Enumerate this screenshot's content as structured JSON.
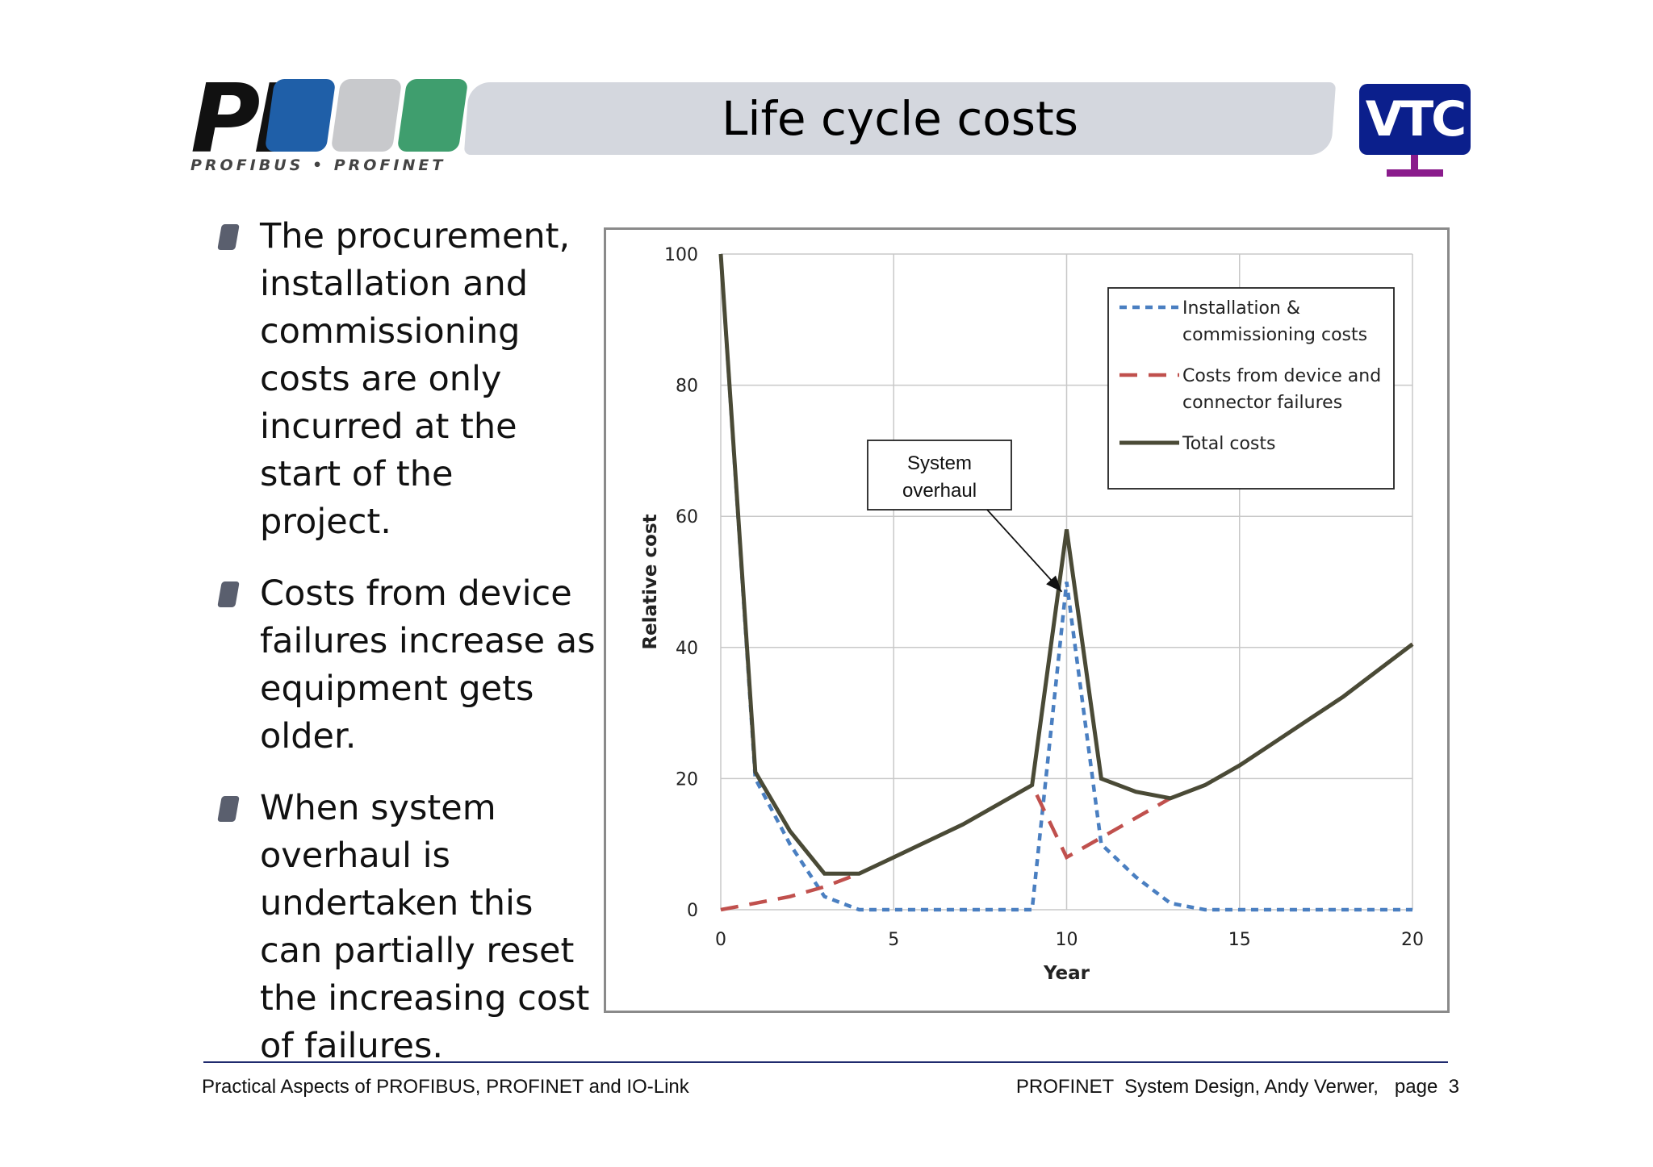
{
  "header": {
    "title": "Life cycle costs",
    "logo_left": {
      "mark": "PI",
      "tagline": "PROFIBUS • PROFINET",
      "block_colors": [
        "#1f5fa8",
        "#c8c9cc",
        "#3f9e6e"
      ]
    },
    "logo_right": {
      "text": "VTC",
      "screen_color": "#0b1f8c",
      "stand_color": "#8a1c8c"
    }
  },
  "bullets": [
    {
      "text": "The procurement, installation and commissioning costs are only incurred at the start of the project."
    },
    {
      "text": "Costs from device failures increase as equipment gets older."
    },
    {
      "text": "When system overhaul is undertaken this can partially reset the increasing cost of failures."
    }
  ],
  "chart_data": {
    "type": "line",
    "xlabel": "Year",
    "ylabel": "Relative cost",
    "xlim": [
      0,
      20
    ],
    "ylim": [
      0,
      100
    ],
    "xticks": [
      0,
      5,
      10,
      15,
      20
    ],
    "yticks": [
      0,
      20,
      40,
      60,
      80,
      100
    ],
    "grid": true,
    "legend_position": "top-right",
    "series": [
      {
        "name": "Installation & commissioning costs",
        "style": "dotted",
        "color": "#4a7fc1",
        "x": [
          0,
          1,
          2,
          3,
          4,
          5,
          6,
          7,
          8,
          9,
          10,
          11,
          12,
          13,
          14,
          15,
          16,
          17,
          18,
          19,
          20
        ],
        "y": [
          100,
          20,
          10,
          2,
          0,
          0,
          0,
          0,
          0,
          0,
          50,
          10,
          5,
          1,
          0,
          0,
          0,
          0,
          0,
          0,
          0
        ]
      },
      {
        "name": "Costs from device and connector failures",
        "style": "dashed",
        "color": "#c0504d",
        "x": [
          0,
          1,
          2,
          3,
          4,
          5,
          6,
          7,
          8,
          9,
          10,
          11,
          12,
          13,
          14,
          15,
          16,
          17,
          18,
          19,
          20
        ],
        "y": [
          0,
          1,
          2,
          3.5,
          5.5,
          8,
          10.5,
          13,
          16,
          19,
          8,
          11,
          14,
          17,
          19,
          22,
          25.5,
          29,
          32.5,
          36.5,
          40.5
        ]
      },
      {
        "name": "Total costs",
        "style": "solid",
        "color": "#4a4a36",
        "x": [
          0,
          1,
          2,
          3,
          4,
          5,
          6,
          7,
          8,
          9,
          10,
          11,
          12,
          13,
          14,
          15,
          16,
          17,
          18,
          19,
          20
        ],
        "y": [
          100,
          21,
          12,
          5.5,
          5.5,
          8,
          10.5,
          13,
          16,
          19,
          58,
          20,
          18,
          17,
          19,
          22,
          25.5,
          29,
          32.5,
          36.5,
          40.5
        ]
      }
    ],
    "annotations": [
      {
        "text": "System overhaul",
        "points_to": {
          "x": 10,
          "y": 48
        }
      }
    ]
  },
  "footer": {
    "left": "Practical Aspects of PROFIBUS, PROFINET and IO-Link",
    "right": "PROFINET  System Design, Andy Verwer,   page  3"
  }
}
